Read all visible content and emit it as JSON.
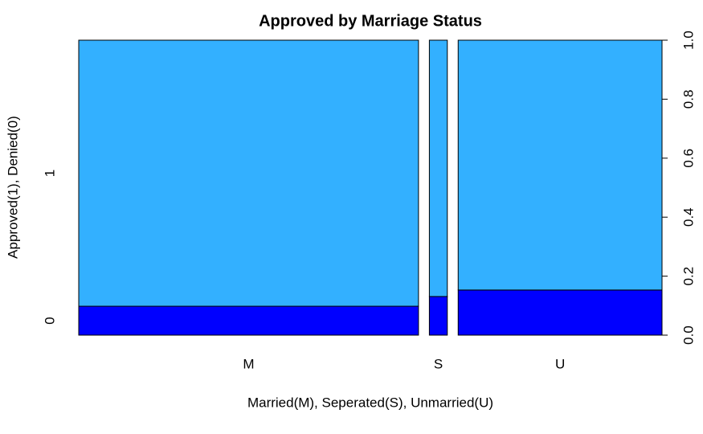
{
  "chart_data": {
    "type": "spine",
    "title": "Approved by Marriage Status",
    "xlabel": "Married(M), Seperated(S), Unmarried(U)",
    "ylabel": "Approved(1), Denied(0)",
    "categories": [
      "M",
      "S",
      "U"
    ],
    "widths": [
      0.605,
      0.032,
      0.363
    ],
    "series": [
      {
        "name": "0",
        "color": "#0000ff",
        "values": [
          0.098,
          0.131,
          0.153
        ]
      },
      {
        "name": "1",
        "color": "#33b0ff",
        "values": [
          0.902,
          0.869,
          0.847
        ]
      }
    ],
    "ylim": [
      0,
      1
    ],
    "yticks": [
      {
        "value": 0,
        "label": "0.0"
      },
      {
        "value": 0.2,
        "label": "0.2"
      },
      {
        "value": 0.4,
        "label": "0.4"
      },
      {
        "value": 0.6,
        "label": "0.6"
      },
      {
        "value": 0.8,
        "label": "0.8"
      },
      {
        "value": 1,
        "label": "1.0"
      }
    ]
  }
}
